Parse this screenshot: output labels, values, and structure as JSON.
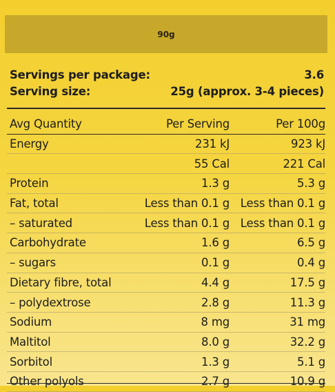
{
  "header": {
    "weight_label": "90g"
  },
  "meta": {
    "servings_label": "Servings per package:",
    "servings_value": "3.6",
    "serving_size_label": "Serving size:",
    "serving_size_value": "25g (approx. 3-4 pieces)"
  },
  "table": {
    "columns": [
      "Avg Quantity",
      "Per Serving",
      "Per 100g"
    ],
    "rows": [
      {
        "name": "Energy",
        "serving": "231 kJ",
        "per100": "923 kJ"
      },
      {
        "name": "",
        "serving": "55 Cal",
        "per100": "221 Cal"
      },
      {
        "name": "Protein",
        "serving": "1.3 g",
        "per100": "5.3 g"
      },
      {
        "name": "Fat, total",
        "serving": "Less than 0.1 g",
        "per100": "Less than 0.1 g"
      },
      {
        "name": "– saturated",
        "serving": "Less than 0.1 g",
        "per100": "Less than 0.1 g"
      },
      {
        "name": "Carbohydrate",
        "serving": "1.6 g",
        "per100": "6.5 g"
      },
      {
        "name": "– sugars",
        "serving": "0.1 g",
        "per100": "0.4 g"
      },
      {
        "name": "Dietary fibre, total",
        "serving": "4.4 g",
        "per100": "17.5 g"
      },
      {
        "name": "– polydextrose",
        "serving": "2.8 g",
        "per100": "11.3 g"
      },
      {
        "name": "Sodium",
        "serving": "8 mg",
        "per100": "31 mg"
      },
      {
        "name": "Maltitol",
        "serving": "8.0 g",
        "per100": "32.2 g"
      },
      {
        "name": "Sorbitol",
        "serving": "1.3 g",
        "per100": "5.1 g"
      },
      {
        "name": "Other polyols",
        "serving": "2.7 g",
        "per100": "10.9 g"
      }
    ]
  }
}
